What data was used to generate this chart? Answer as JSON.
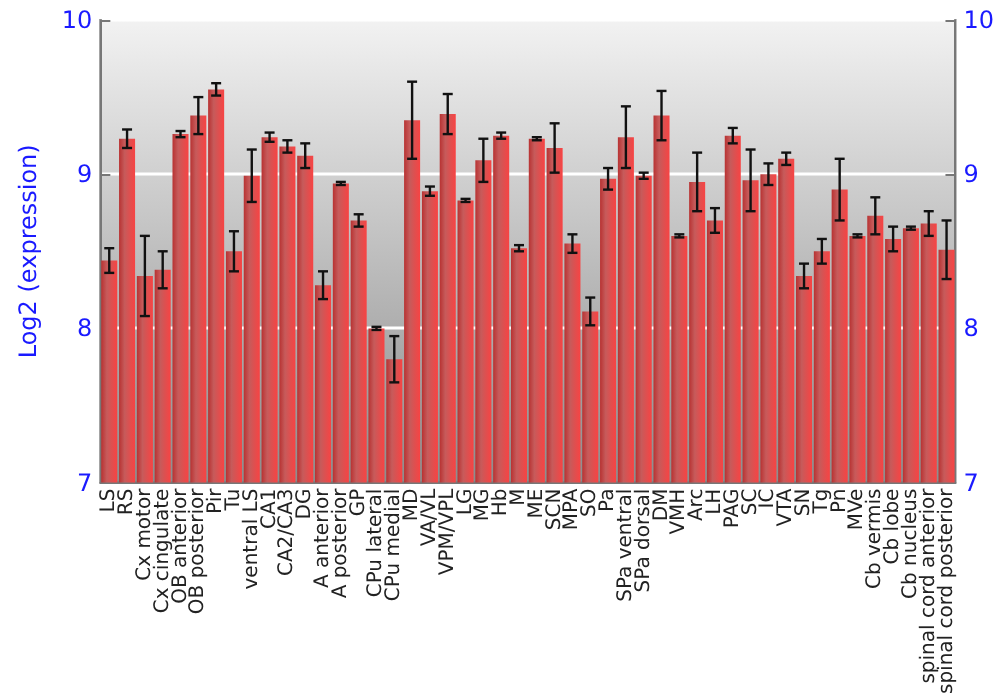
{
  "chart_data": {
    "type": "bar",
    "ylabel": "Log2 (expression)",
    "categories": [
      "LS",
      "RS",
      "Cx motor",
      "Cx cingulate",
      "OB anterior",
      "OB posterior",
      "Pir",
      "Tu",
      "ventral LS",
      "CA1",
      "CA2/CA3",
      "DG",
      "A anterior",
      "A posterior",
      "GP",
      "CPu lateral",
      "CPu medial",
      "MD",
      "VA/VL",
      "VPM/VPL",
      "LG",
      "MG",
      "Hb",
      "M",
      "ME",
      "SCN",
      "MPA",
      "SO",
      "Pa",
      "SPa ventral",
      "SPa dorsal",
      "DM",
      "VMH",
      "Arc",
      "LH",
      "PAG",
      "SC",
      "IC",
      "VTA",
      "SN",
      "Tg",
      "Pn",
      "MVe",
      "Cb vermis",
      "Cb lobe",
      "Cb nucleus",
      "spinal cord anterior",
      "spinal cord posterior"
    ],
    "values": [
      8.44,
      9.23,
      8.34,
      8.38,
      9.26,
      9.38,
      9.55,
      8.5,
      8.99,
      9.24,
      9.18,
      9.12,
      8.28,
      8.94,
      8.7,
      8.0,
      7.8,
      9.35,
      8.89,
      9.39,
      8.83,
      9.09,
      9.25,
      8.52,
      9.23,
      9.17,
      8.55,
      8.11,
      8.97,
      9.24,
      8.99,
      9.38,
      8.6,
      8.95,
      8.7,
      9.25,
      8.96,
      9.0,
      9.1,
      8.34,
      8.5,
      8.9,
      8.6,
      8.73,
      8.58,
      8.65,
      8.68,
      8.51
    ],
    "errors": [
      0.08,
      0.06,
      0.26,
      0.12,
      0.02,
      0.12,
      0.04,
      0.13,
      0.17,
      0.03,
      0.04,
      0.08,
      0.09,
      0.01,
      0.04,
      0.01,
      0.15,
      0.25,
      0.03,
      0.13,
      0.01,
      0.14,
      0.02,
      0.02,
      0.01,
      0.16,
      0.06,
      0.09,
      0.07,
      0.2,
      0.02,
      0.16,
      0.01,
      0.19,
      0.08,
      0.05,
      0.2,
      0.07,
      0.04,
      0.08,
      0.08,
      0.2,
      0.01,
      0.12,
      0.08,
      0.01,
      0.08,
      0.19
    ],
    "color": "#b83232",
    "ylim": [
      7,
      10
    ],
    "yticks": [
      7,
      8,
      9,
      10
    ],
    "y2lim": [
      7,
      10
    ],
    "y2ticks": [
      7,
      8,
      9,
      10
    ],
    "grid": "y"
  }
}
